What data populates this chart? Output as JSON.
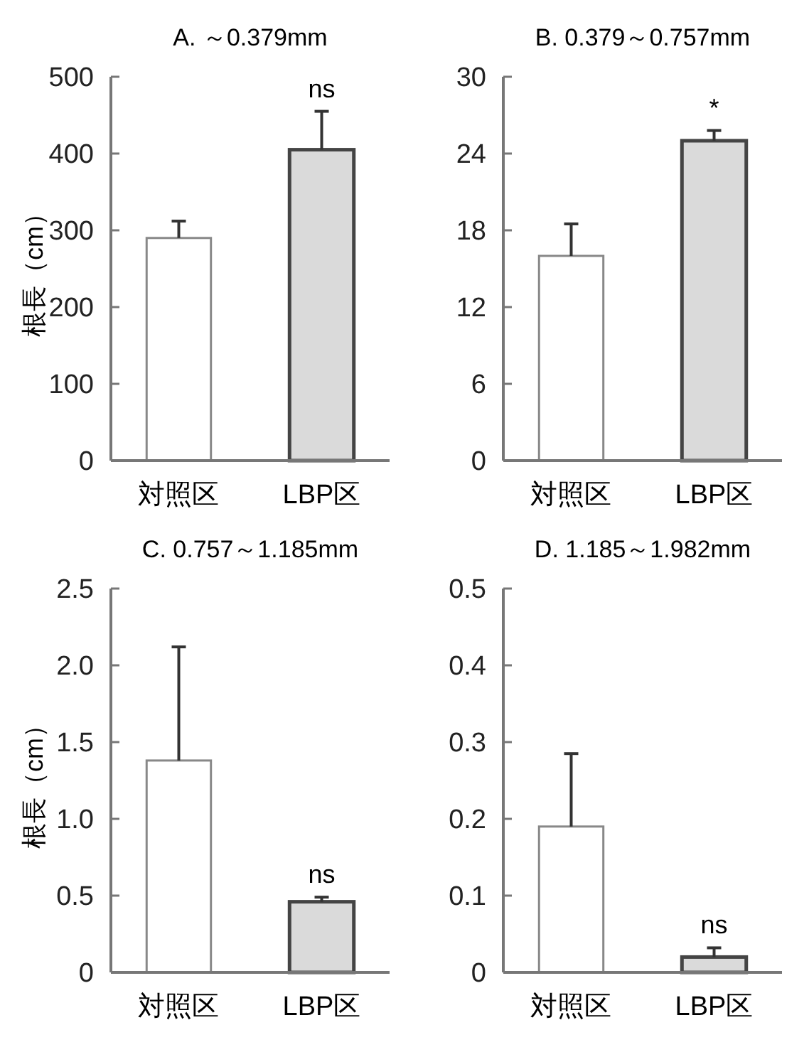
{
  "chart_data": [
    {
      "type": "bar",
      "title": "A. ～0.379mm",
      "ylabel": "根長（cm）",
      "categories": [
        "対照区",
        "LBP区"
      ],
      "values": [
        290,
        405
      ],
      "colors": [
        "#ffffff",
        "#dadada"
      ],
      "errors": [
        22,
        50
      ],
      "ylim": [
        0,
        500
      ],
      "yticks": [
        0,
        100,
        200,
        300,
        400,
        500
      ],
      "annotations": [
        {
          "text": "ns",
          "x": "LBP区",
          "y": 455
        }
      ]
    },
    {
      "type": "bar",
      "title": "B. 0.379～0.757mm",
      "categories": [
        "対照区",
        "LBP区"
      ],
      "values": [
        16,
        25
      ],
      "colors": [
        "#ffffff",
        "#dadada"
      ],
      "errors": [
        2.5,
        0.8
      ],
      "ylim": [
        0,
        30
      ],
      "yticks": [
        0,
        6,
        12,
        18,
        24,
        30
      ],
      "annotations": [
        {
          "text": "*",
          "x": "LBP区",
          "y": 25.8
        }
      ]
    },
    {
      "type": "bar",
      "title": "C. 0.757～1.185mm",
      "ylabel": "根長（cm）",
      "categories": [
        "対照区",
        "LBP区"
      ],
      "values": [
        1.38,
        0.46
      ],
      "colors": [
        "#ffffff",
        "#dadada"
      ],
      "errors": [
        0.74,
        0.03
      ],
      "ylim": [
        0,
        2.5
      ],
      "yticks": [
        0,
        {
          "value": 0.5,
          "label": "0.5"
        },
        {
          "value": 1,
          "label": "1.0"
        },
        {
          "value": 1.5,
          "label": "1.5"
        },
        {
          "value": 2,
          "label": "2.0"
        },
        {
          "value": 2.5,
          "label": "2.5"
        }
      ],
      "annotations": [
        {
          "text": "ns",
          "x": "LBP区",
          "y": 0.49
        }
      ]
    },
    {
      "type": "bar",
      "title": "D. 1.185～1.982mm",
      "categories": [
        "対照区",
        "LBP区"
      ],
      "values": [
        0.19,
        0.02
      ],
      "colors": [
        "#ffffff",
        "#dadada"
      ],
      "errors": [
        0.095,
        0.012
      ],
      "ylim": [
        0,
        0.5
      ],
      "yticks": [
        0,
        0.1,
        0.2,
        0.3,
        0.4,
        0.5
      ],
      "annotations": [
        {
          "text": "ns",
          "x": "LBP区",
          "y": 0.032
        }
      ]
    }
  ]
}
